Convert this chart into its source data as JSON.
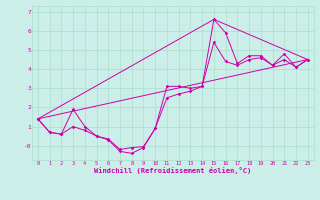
{
  "xlabel": "Windchill (Refroidissement éolien,°C)",
  "bg_color": "#cceee8",
  "grid_color": "#aaddcc",
  "line_color": "#cc00aa",
  "xlim": [
    -0.5,
    23.5
  ],
  "ylim": [
    -0.75,
    7.3
  ],
  "yticks": [
    0,
    1,
    2,
    3,
    4,
    5,
    6,
    7
  ],
  "ytick_labels": [
    "-0",
    "1",
    "2",
    "3",
    "4",
    "5",
    "6",
    "7"
  ],
  "xticks": [
    0,
    1,
    2,
    3,
    4,
    5,
    6,
    7,
    8,
    9,
    10,
    11,
    12,
    13,
    14,
    15,
    16,
    17,
    18,
    19,
    20,
    21,
    22,
    23
  ],
  "series1_x": [
    0,
    1,
    2,
    3,
    4,
    5,
    6,
    7,
    8,
    9,
    10,
    11,
    12,
    13,
    14,
    15,
    16,
    17,
    18,
    19,
    20,
    21,
    22,
    23
  ],
  "series1_y": [
    1.4,
    0.7,
    0.6,
    1.9,
    1.0,
    0.5,
    0.3,
    -0.3,
    -0.4,
    -0.1,
    0.9,
    3.1,
    3.1,
    3.0,
    3.1,
    6.6,
    5.9,
    4.3,
    4.7,
    4.7,
    4.2,
    4.8,
    4.1,
    4.5
  ],
  "series2_x": [
    0,
    1,
    2,
    3,
    4,
    5,
    6,
    7,
    8,
    9,
    10,
    11,
    12,
    13,
    14,
    15,
    16,
    17,
    18,
    19,
    20,
    21,
    22,
    23
  ],
  "series2_y": [
    1.4,
    0.7,
    0.6,
    1.0,
    0.8,
    0.5,
    0.35,
    -0.2,
    -0.1,
    -0.05,
    0.9,
    2.5,
    2.7,
    2.85,
    3.1,
    5.4,
    4.4,
    4.2,
    4.5,
    4.6,
    4.2,
    4.5,
    4.1,
    4.5
  ],
  "line1_x": [
    0,
    15,
    23
  ],
  "line1_y": [
    1.4,
    6.6,
    4.5
  ],
  "line2_x": [
    0,
    23
  ],
  "line2_y": [
    1.4,
    4.5
  ]
}
